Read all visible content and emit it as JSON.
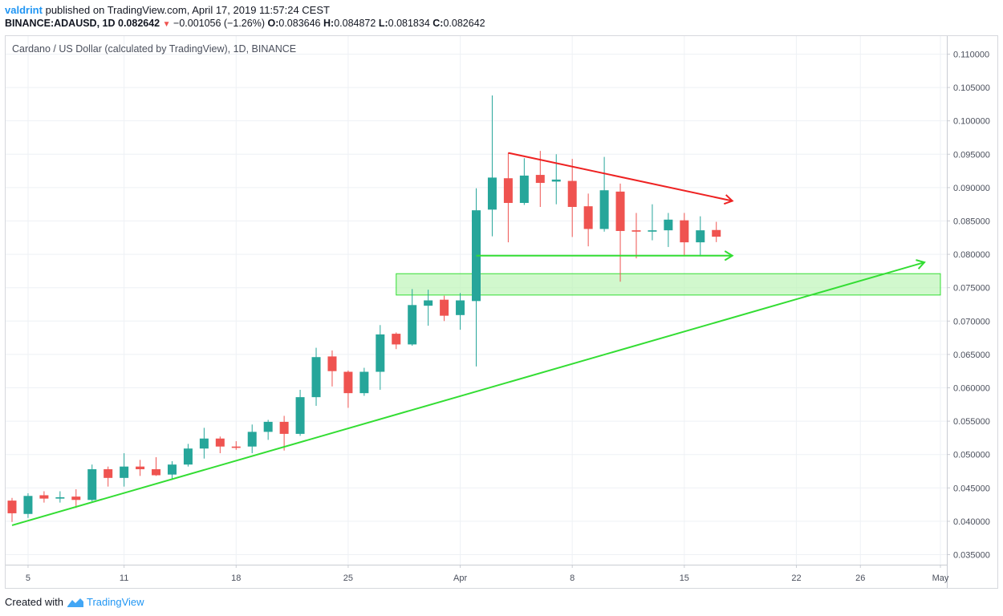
{
  "header": {
    "author": "valdrint",
    "published_text": "published on TradingView.com, April 17, 2019 11:57:24 CEST",
    "symbol": "BINANCE:ADAUSD, 1D",
    "last": "0.082642",
    "change": "−0.001056 (−1.26%)",
    "open_label": "O:",
    "open": "0.083646",
    "high_label": "H:",
    "high": "0.084872",
    "low_label": "L:",
    "low": "0.081834",
    "close_label": "C:",
    "close": "0.082642"
  },
  "footer": {
    "created_with": "Created with",
    "brand": "TradingView"
  },
  "colors": {
    "up": "#26a69a",
    "down": "#ef5350",
    "support": "#33dd33",
    "resistance": "#ee2222",
    "zone_fill": "#b9f5b2",
    "grid": "#eef1f5",
    "axis_text": "#4a4f5c"
  },
  "chart_data": {
    "type": "candlestick",
    "title": "Cardano / US Dollar (calculated by TradingView), 1D, BINANCE",
    "x_axis": {
      "range": [
        "2019-03-04",
        "2019-05-01"
      ],
      "ticks": [
        {
          "date": "2019-03-05",
          "label": "5"
        },
        {
          "date": "2019-03-11",
          "label": "11"
        },
        {
          "date": "2019-03-18",
          "label": "18"
        },
        {
          "date": "2019-03-25",
          "label": "25"
        },
        {
          "date": "2019-04-01",
          "label": "Apr"
        },
        {
          "date": "2019-04-08",
          "label": "8"
        },
        {
          "date": "2019-04-15",
          "label": "15"
        },
        {
          "date": "2019-04-22",
          "label": "22"
        },
        {
          "date": "2019-04-26",
          "label": "26"
        },
        {
          "date": "2019-05-01",
          "label": "May"
        }
      ]
    },
    "y_axis": {
      "range": [
        0.0335,
        0.1127
      ],
      "position": "right",
      "ticks": [
        0.035,
        0.04,
        0.045,
        0.05,
        0.055,
        0.06,
        0.065,
        0.07,
        0.075,
        0.08,
        0.085,
        0.09,
        0.095,
        0.1,
        0.105,
        0.11
      ],
      "tick_labels": [
        "0.035000",
        "0.040000",
        "0.045000",
        "0.050000",
        "0.055000",
        "0.060000",
        "0.065000",
        "0.070000",
        "0.075000",
        "0.080000",
        "0.085000",
        "0.090000",
        "0.095000",
        "0.100000",
        "0.105000",
        "0.110000"
      ]
    },
    "grid": true,
    "candles": [
      {
        "date": "2019-03-04",
        "open": 0.0431,
        "high": 0.0435,
        "low": 0.0399,
        "close": 0.0412
      },
      {
        "date": "2019-03-05",
        "open": 0.0411,
        "high": 0.0442,
        "low": 0.0405,
        "close": 0.0438
      },
      {
        "date": "2019-03-06",
        "open": 0.0439,
        "high": 0.0445,
        "low": 0.0428,
        "close": 0.0434
      },
      {
        "date": "2019-03-07",
        "open": 0.0434,
        "high": 0.0445,
        "low": 0.0428,
        "close": 0.0436
      },
      {
        "date": "2019-03-08",
        "open": 0.0437,
        "high": 0.0448,
        "low": 0.042,
        "close": 0.0432
      },
      {
        "date": "2019-03-09",
        "open": 0.0432,
        "high": 0.0485,
        "low": 0.043,
        "close": 0.0478
      },
      {
        "date": "2019-03-10",
        "open": 0.0478,
        "high": 0.0482,
        "low": 0.0452,
        "close": 0.0465
      },
      {
        "date": "2019-03-11",
        "open": 0.0465,
        "high": 0.0502,
        "low": 0.0452,
        "close": 0.0482
      },
      {
        "date": "2019-03-12",
        "open": 0.0482,
        "high": 0.0492,
        "low": 0.0468,
        "close": 0.0478
      },
      {
        "date": "2019-03-13",
        "open": 0.0478,
        "high": 0.0496,
        "low": 0.0468,
        "close": 0.0469
      },
      {
        "date": "2019-03-14",
        "open": 0.047,
        "high": 0.049,
        "low": 0.0462,
        "close": 0.0485
      },
      {
        "date": "2019-03-15",
        "open": 0.0485,
        "high": 0.0516,
        "low": 0.0482,
        "close": 0.0509
      },
      {
        "date": "2019-03-16",
        "open": 0.0509,
        "high": 0.054,
        "low": 0.0494,
        "close": 0.0524
      },
      {
        "date": "2019-03-17",
        "open": 0.0524,
        "high": 0.0527,
        "low": 0.0502,
        "close": 0.0512
      },
      {
        "date": "2019-03-18",
        "open": 0.0512,
        "high": 0.052,
        "low": 0.0507,
        "close": 0.051
      },
      {
        "date": "2019-03-19",
        "open": 0.0512,
        "high": 0.0545,
        "low": 0.0502,
        "close": 0.0534
      },
      {
        "date": "2019-03-20",
        "open": 0.0534,
        "high": 0.0552,
        "low": 0.0522,
        "close": 0.0549
      },
      {
        "date": "2019-03-21",
        "open": 0.0549,
        "high": 0.0558,
        "low": 0.0506,
        "close": 0.0531
      },
      {
        "date": "2019-03-22",
        "open": 0.0531,
        "high": 0.0597,
        "low": 0.0528,
        "close": 0.0586
      },
      {
        "date": "2019-03-23",
        "open": 0.0586,
        "high": 0.066,
        "low": 0.0573,
        "close": 0.0646
      },
      {
        "date": "2019-03-24",
        "open": 0.0647,
        "high": 0.0656,
        "low": 0.0602,
        "close": 0.0625
      },
      {
        "date": "2019-03-25",
        "open": 0.0624,
        "high": 0.0626,
        "low": 0.057,
        "close": 0.0592
      },
      {
        "date": "2019-03-26",
        "open": 0.0592,
        "high": 0.063,
        "low": 0.0588,
        "close": 0.0624
      },
      {
        "date": "2019-03-27",
        "open": 0.0624,
        "high": 0.0694,
        "low": 0.0597,
        "close": 0.068
      },
      {
        "date": "2019-03-28",
        "open": 0.0681,
        "high": 0.0683,
        "low": 0.0658,
        "close": 0.0665
      },
      {
        "date": "2019-03-29",
        "open": 0.0665,
        "high": 0.0748,
        "low": 0.0663,
        "close": 0.0724
      },
      {
        "date": "2019-03-30",
        "open": 0.0723,
        "high": 0.0747,
        "low": 0.0693,
        "close": 0.0731
      },
      {
        "date": "2019-03-31",
        "open": 0.0732,
        "high": 0.0738,
        "low": 0.07,
        "close": 0.0708
      },
      {
        "date": "2019-04-01",
        "open": 0.0709,
        "high": 0.0742,
        "low": 0.0687,
        "close": 0.0731
      },
      {
        "date": "2019-04-02",
        "open": 0.073,
        "high": 0.0899,
        "low": 0.0632,
        "close": 0.0866
      },
      {
        "date": "2019-04-03",
        "open": 0.0867,
        "high": 0.1038,
        "low": 0.0827,
        "close": 0.0915
      },
      {
        "date": "2019-04-04",
        "open": 0.0914,
        "high": 0.0952,
        "low": 0.0818,
        "close": 0.0877
      },
      {
        "date": "2019-04-05",
        "open": 0.0877,
        "high": 0.0944,
        "low": 0.0874,
        "close": 0.0918
      },
      {
        "date": "2019-04-06",
        "open": 0.0919,
        "high": 0.0955,
        "low": 0.0871,
        "close": 0.0907
      },
      {
        "date": "2019-04-07",
        "open": 0.0909,
        "high": 0.095,
        "low": 0.0875,
        "close": 0.0912
      },
      {
        "date": "2019-04-08",
        "open": 0.091,
        "high": 0.0943,
        "low": 0.0826,
        "close": 0.0871
      },
      {
        "date": "2019-04-09",
        "open": 0.0872,
        "high": 0.0891,
        "low": 0.0812,
        "close": 0.0838
      },
      {
        "date": "2019-04-10",
        "open": 0.0838,
        "high": 0.0946,
        "low": 0.0834,
        "close": 0.0896
      },
      {
        "date": "2019-04-11",
        "open": 0.0894,
        "high": 0.0906,
        "low": 0.0759,
        "close": 0.0835
      },
      {
        "date": "2019-04-12",
        "open": 0.0836,
        "high": 0.0862,
        "low": 0.0794,
        "close": 0.0834
      },
      {
        "date": "2019-04-13",
        "open": 0.0834,
        "high": 0.0875,
        "low": 0.0821,
        "close": 0.0836
      },
      {
        "date": "2019-04-14",
        "open": 0.0836,
        "high": 0.0862,
        "low": 0.0811,
        "close": 0.0852
      },
      {
        "date": "2019-04-15",
        "open": 0.0851,
        "high": 0.0862,
        "low": 0.0798,
        "close": 0.0818
      },
      {
        "date": "2019-04-16",
        "open": 0.0818,
        "high": 0.0857,
        "low": 0.0797,
        "close": 0.0836
      },
      {
        "date": "2019-04-17",
        "open": 0.083646,
        "high": 0.084872,
        "low": 0.081834,
        "close": 0.082642
      }
    ],
    "annotations": [
      {
        "kind": "trend_line",
        "color": "green",
        "from": {
          "date": "2019-03-04",
          "price": 0.0394
        },
        "to": {
          "date": "2019-04-30",
          "price": 0.0788
        },
        "arrow": true
      },
      {
        "kind": "trend_line",
        "color": "red",
        "from": {
          "date": "2019-04-04",
          "price": 0.0952
        },
        "to": {
          "date": "2019-04-18",
          "price": 0.088
        },
        "arrow": true
      },
      {
        "kind": "horizontal_line",
        "color": "green",
        "from": {
          "date": "2019-04-02",
          "price": 0.0798
        },
        "to": {
          "date": "2019-04-18",
          "price": 0.0798
        },
        "arrow": true
      },
      {
        "kind": "zone",
        "color": "green",
        "from_date": "2019-03-28",
        "to_date": "2019-05-01",
        "price_low": 0.0739,
        "price_high": 0.0771
      }
    ]
  }
}
